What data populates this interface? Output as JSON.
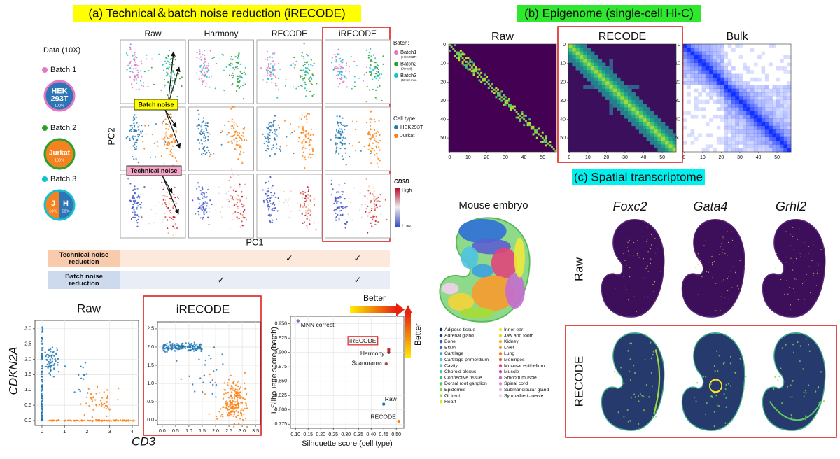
{
  "panel_a": {
    "title": "(a) Technical＆batch noise reduction (iRECODE)",
    "data_heading": "Data (10X)",
    "batches": [
      {
        "name": "Batch 1",
        "color": "#e377c2",
        "lines": [
          "HEK",
          "293T"
        ],
        "pct": "100%",
        "fill": "#2e75b6"
      },
      {
        "name": "Batch 2",
        "color": "#2ca02c",
        "lines": [
          "Jurkat"
        ],
        "pct": "100%",
        "fill": "#f58220"
      },
      {
        "name": "Batch 3",
        "color": "#17becf",
        "parts": [
          {
            "label": "J",
            "pct": "50%",
            "fill": "#f58220"
          },
          {
            "label": "H",
            "pct": "50%",
            "fill": "#2e75b6"
          }
        ]
      }
    ],
    "columns": [
      "Raw",
      "Harmony",
      "RECODE",
      "iRECODE"
    ],
    "y_label": "PC2",
    "x_label": "PC1",
    "batch_noise": "Batch noise",
    "technical_noise": "Technical noise",
    "batch_legend": {
      "title": "Batch:",
      "items": [
        {
          "name": "Batch1",
          "note": "(HEK293T)",
          "color": "#e377c2"
        },
        {
          "name": "Batch2",
          "note": "(Jurkat)",
          "color": "#2ca02c"
        },
        {
          "name": "Batch3",
          "note": "(50:50 mix)",
          "color": "#17becf"
        }
      ]
    },
    "cell_legend": {
      "title": "Cell type:",
      "items": [
        {
          "name": "HEK293T",
          "color": "#1f77b4"
        },
        {
          "name": "Jurkat",
          "color": "#ff7f0e"
        }
      ]
    },
    "expression_legend": {
      "title": "CD3D",
      "high": "High",
      "low": "Low"
    },
    "table": [
      {
        "label": [
          "Technical noise",
          "reduction"
        ],
        "cells": [
          null,
          null,
          "✓",
          "✓"
        ]
      },
      {
        "label": [
          "Batch noise",
          "reduction"
        ],
        "cells": [
          null,
          "✓",
          null,
          "✓"
        ]
      }
    ]
  },
  "chart_data": [
    {
      "type": "scatter",
      "title": "Raw",
      "x_label": "CD3",
      "y_label": "CDKN2A",
      "xlim": [
        -0.31,
        4.28
      ],
      "xticks": [
        0,
        1,
        2,
        3,
        4
      ],
      "ylim": [
        -0.16,
        3.27
      ],
      "yticks": [
        {
          "value": 0,
          "label": "0.0"
        },
        {
          "value": 0.5,
          "label": "0.5"
        },
        {
          "value": 1,
          "label": "1.0"
        },
        {
          "value": 1.5,
          "label": "1.5"
        },
        {
          "value": 2,
          "label": "2.0"
        },
        {
          "value": 2.5,
          "label": "2.5"
        },
        {
          "value": 3,
          "label": "3.0"
        }
      ],
      "grid": true
    },
    {
      "type": "scatter",
      "title": "iRECODE",
      "xlim": [
        -0.18,
        3.68
      ],
      "xticks": [
        {
          "value": 0,
          "label": "0.0"
        },
        {
          "value": 0.5,
          "label": "0.5"
        },
        {
          "value": 1,
          "label": "1.0"
        },
        {
          "value": 1.5,
          "label": "1.5"
        },
        {
          "value": 2,
          "label": "2.0"
        },
        {
          "value": 2.5,
          "label": "2.5"
        },
        {
          "value": 3,
          "label": "3.0"
        },
        {
          "value": 3.5,
          "label": "3.5"
        }
      ],
      "ylim": [
        -0.13,
        2.69
      ],
      "yticks": [
        {
          "value": 0,
          "label": "0.0"
        },
        {
          "value": 0.5,
          "label": "0.5"
        },
        {
          "value": 1,
          "label": "1.0"
        },
        {
          "value": 1.5,
          "label": "1.5"
        },
        {
          "value": 2,
          "label": "2.0"
        },
        {
          "value": 2.5,
          "label": "2.5"
        }
      ],
      "grid": true
    },
    {
      "type": "scatter",
      "x_label": "Silhouette score (cell type)",
      "y_label": "1-Silhouette score (batch)",
      "better": "Better",
      "xlim": [
        0.08,
        0.53
      ],
      "xticks": [
        {
          "value": 0.1,
          "label": "0.10"
        },
        {
          "value": 0.15,
          "label": "0.15"
        },
        {
          "value": 0.2,
          "label": "0.20"
        },
        {
          "value": 0.25,
          "label": "0.25"
        },
        {
          "value": 0.3,
          "label": "0.30"
        },
        {
          "value": 0.35,
          "label": "0.35"
        },
        {
          "value": 0.4,
          "label": "0.40"
        },
        {
          "value": 0.45,
          "label": "0.45"
        },
        {
          "value": 0.5,
          "label": "0.50"
        }
      ],
      "ylim": [
        0.768,
        0.963
      ],
      "yticks": [
        {
          "value": 0.775,
          "label": "0.775"
        },
        {
          "value": 0.8,
          "label": "0.800"
        },
        {
          "value": 0.825,
          "label": "0.825"
        },
        {
          "value": 0.85,
          "label": "0.850"
        },
        {
          "value": 0.875,
          "label": "0.875"
        },
        {
          "value": 0.9,
          "label": "0.900"
        },
        {
          "value": 0.925,
          "label": "0.925"
        },
        {
          "value": 0.95,
          "label": "0.950"
        }
      ],
      "grid": true,
      "points": [
        {
          "label": "MNN correct",
          "x": 0.11,
          "y": 0.955,
          "color": "#9467bd"
        },
        {
          "label": "iRECODE",
          "x": 0.47,
          "y": 0.905,
          "color": "#d62728"
        },
        {
          "label": "Harmony",
          "x": 0.47,
          "y": 0.9,
          "color": "#8c2d2d"
        },
        {
          "label": "Scanorama",
          "x": 0.46,
          "y": 0.88,
          "color": "#8c564b"
        },
        {
          "label": "Raw",
          "x": 0.45,
          "y": 0.81,
          "color": "#1f77b4"
        },
        {
          "label": "RECODE",
          "x": 0.51,
          "y": 0.78,
          "color": "#ff7f0e"
        }
      ]
    }
  ],
  "panel_b": {
    "title": "(b) Epigenome (single-cell Hi-C)",
    "maps": [
      "Raw",
      "RECODE",
      "Bulk"
    ],
    "ticks": [
      0,
      10,
      20,
      30,
      40,
      50
    ]
  },
  "panel_c": {
    "title": "(c) Spatial transcriptome",
    "embryo_title": "Mouse embryo",
    "genes": [
      "Foxc2",
      "Gata4",
      "Grhl2"
    ],
    "rows": [
      "Raw",
      "RECODE"
    ],
    "tissues": [
      {
        "name": "Adipose tissue",
        "color": "#1a2a6c"
      },
      {
        "name": "Adrenal gland",
        "color": "#2b3d8f"
      },
      {
        "name": "Bone",
        "color": "#3b5bbf"
      },
      {
        "name": "Brain",
        "color": "#2f6fd6"
      },
      {
        "name": "Cartilage",
        "color": "#3da0e0"
      },
      {
        "name": "Cartilage primordium",
        "color": "#4cc3e0"
      },
      {
        "name": "Cavity",
        "color": "#45d0c0"
      },
      {
        "name": "Choroid plexus",
        "color": "#3fcf9a"
      },
      {
        "name": "Connective tissue",
        "color": "#3cc36f"
      },
      {
        "name": "Dorsal root ganglion",
        "color": "#52c847"
      },
      {
        "name": "Epidermis",
        "color": "#7fd23a"
      },
      {
        "name": "GI tract",
        "color": "#a6dc36"
      },
      {
        "name": "Heart",
        "color": "#cde634"
      },
      {
        "name": "Inner ear",
        "color": "#eee83a"
      },
      {
        "name": "Jaw and tooth",
        "color": "#f5d33a"
      },
      {
        "name": "Kidney",
        "color": "#f7b733"
      },
      {
        "name": "Liver",
        "color": "#f79a2e"
      },
      {
        "name": "Lung",
        "color": "#f47b2b"
      },
      {
        "name": "Meninges",
        "color": "#ec5a3a"
      },
      {
        "name": "Mucosal epithelium",
        "color": "#e0457a"
      },
      {
        "name": "Muscle",
        "color": "#d24aa8"
      },
      {
        "name": "Smooth muscle",
        "color": "#c46bd0"
      },
      {
        "name": "Spinal cord",
        "color": "#d58fe0"
      },
      {
        "name": "Submandibular gland",
        "color": "#e3b0e8"
      },
      {
        "name": "Sympathetic nerve",
        "color": "#f0cfee"
      }
    ]
  }
}
